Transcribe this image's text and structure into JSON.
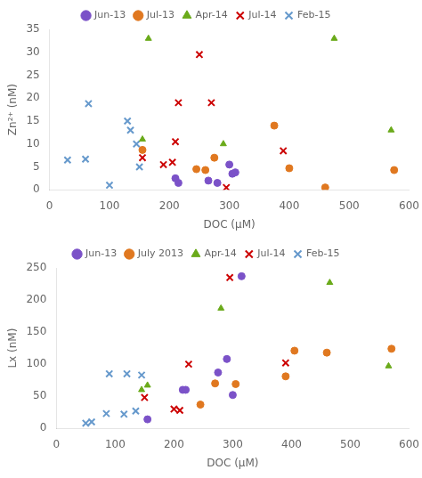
{
  "chart_data": [
    {
      "type": "scatter",
      "x_label": "DOC (μM)",
      "y_label": "Zn²⁺ (nM)",
      "xlim": [
        0,
        600
      ],
      "ylim": [
        0,
        35
      ],
      "xticks": [
        0,
        100,
        200,
        300,
        400,
        500,
        600
      ],
      "yticks": [
        0,
        5,
        10,
        15,
        20,
        25,
        30,
        35
      ],
      "grid": false,
      "legend": "top",
      "series": [
        {
          "name": "Jun-13",
          "color": "#7b52c8",
          "marker": "circle",
          "x": [
            210,
            215,
            265,
            280,
            300,
            305,
            310
          ],
          "values": [
            2.5,
            1.5,
            2.0,
            1.5,
            5.5,
            3.5,
            3.8
          ]
        },
        {
          "name": "Jul-13",
          "color": "#e07820",
          "marker": "circle",
          "x": [
            155,
            245,
            260,
            275,
            375,
            400,
            460,
            575
          ],
          "values": [
            8.7,
            4.5,
            4.3,
            7.0,
            14.0,
            4.7,
            0.5,
            4.3
          ]
        },
        {
          "name": "Apr-14",
          "color": "#6aaa1a",
          "marker": "triangle",
          "x": [
            155,
            165,
            290,
            475,
            570
          ],
          "values": [
            11.0,
            33.0,
            10.0,
            33.0,
            13.0
          ]
        },
        {
          "name": "Jul-14",
          "color": "#cc0000",
          "marker": "x",
          "x": [
            155,
            190,
            205,
            210,
            215,
            250,
            270,
            295,
            390
          ],
          "values": [
            7.0,
            5.5,
            6.0,
            10.5,
            19.0,
            29.5,
            19.0,
            0.5,
            8.5
          ]
        },
        {
          "name": "Feb-15",
          "color": "#6699cc",
          "marker": "x",
          "x": [
            30,
            60,
            65,
            100,
            130,
            135,
            145,
            150
          ],
          "values": [
            6.5,
            6.7,
            18.8,
            1.0,
            15.0,
            13.0,
            10.0,
            5.0
          ]
        }
      ]
    },
    {
      "type": "scatter",
      "x_label": "DOC (μM)",
      "y_label": "Lx (nM)",
      "xlim": [
        0,
        600
      ],
      "ylim": [
        0,
        250
      ],
      "xticks": [
        0,
        100,
        200,
        300,
        400,
        500,
        600
      ],
      "yticks": [
        0,
        50,
        100,
        150,
        200,
        250
      ],
      "grid": false,
      "legend": "top",
      "series": [
        {
          "name": "Jun-13",
          "color": "#7b52c8",
          "marker": "circle",
          "x": [
            155,
            215,
            220,
            275,
            290,
            300,
            315
          ],
          "values": [
            14.0,
            60.0,
            60.0,
            87.0,
            108.0,
            52.0,
            237.0
          ]
        },
        {
          "name": "July 2013",
          "color": "#e07820",
          "marker": "circle",
          "x": [
            245,
            270,
            305,
            390,
            405,
            460,
            570
          ],
          "values": [
            37.0,
            70.0,
            69.0,
            81.0,
            121.0,
            118.0,
            124.0
          ]
        },
        {
          "name": "Apr-14",
          "color": "#6aaa1a",
          "marker": "triangle",
          "x": [
            145,
            155,
            280,
            465,
            565
          ],
          "values": [
            60.0,
            67.0,
            187.0,
            227.0,
            97.0
          ]
        },
        {
          "name": "Jul-14",
          "color": "#cc0000",
          "marker": "x",
          "x": [
            150,
            200,
            210,
            225,
            295,
            390
          ],
          "values": [
            48.0,
            30.0,
            28.0,
            100.0,
            235.0,
            102.0
          ]
        },
        {
          "name": "Feb-15",
          "color": "#6699cc",
          "marker": "x",
          "x": [
            50,
            60,
            85,
            90,
            115,
            120,
            135,
            145
          ],
          "values": [
            8.0,
            10.0,
            23.0,
            85.0,
            22.0,
            85.0,
            27.0,
            83.0
          ]
        }
      ]
    }
  ]
}
